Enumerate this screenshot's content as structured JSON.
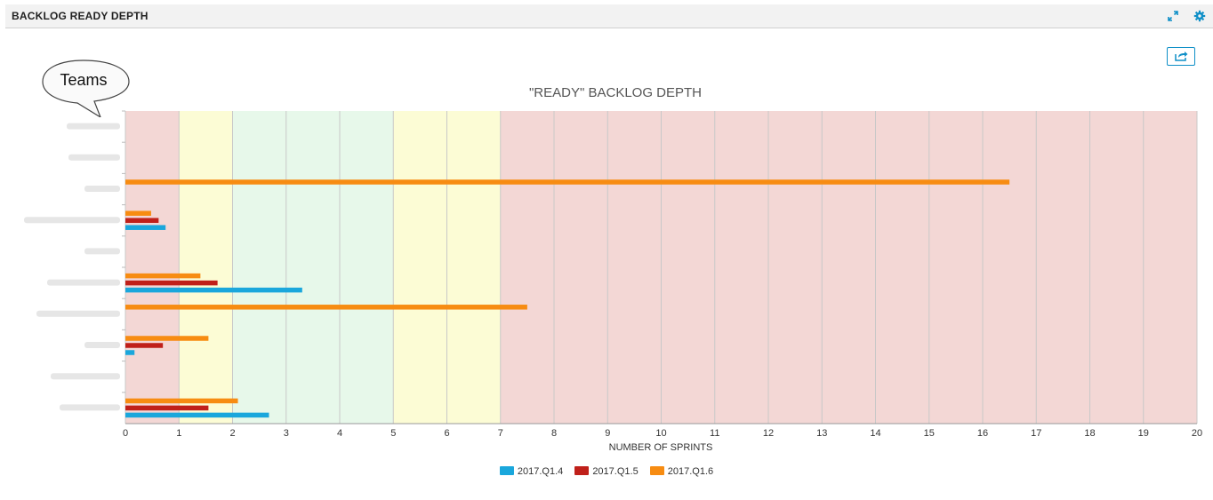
{
  "panel": {
    "title": "BACKLOG READY DEPTH",
    "icons": [
      "expand-icon",
      "gear-icon",
      "export-icon"
    ]
  },
  "callout": {
    "text": "Teams"
  },
  "colors": {
    "header_icon": "#0e8fc7",
    "band_red": "#f3d7d5",
    "band_yellow": "#fcfcd5",
    "band_green": "#e7f8ea",
    "grid": "#c8c8c8"
  },
  "chart_data": {
    "type": "bar",
    "orientation": "horizontal",
    "title": "\"READY\" BACKLOG DEPTH",
    "xlabel": "NUMBER OF SPRINTS",
    "ylabel": "",
    "xlim": [
      0,
      20
    ],
    "x_ticks": [
      "0",
      "1",
      "2",
      "3",
      "4",
      "5",
      "6",
      "7",
      "8",
      "9",
      "10",
      "11",
      "12",
      "13",
      "14",
      "15",
      "16",
      "17",
      "18",
      "19",
      "20"
    ],
    "categories": [
      "Team 1",
      "Team 2",
      "Team 3",
      "Team 4",
      "Team 5",
      "Team 6",
      "Team 7",
      "Team 8",
      "Team 9",
      "Team 10"
    ],
    "category_labels_obscured": true,
    "bands": [
      {
        "from": 0,
        "to": 1,
        "color": "red"
      },
      {
        "from": 1,
        "to": 2,
        "color": "yellow"
      },
      {
        "from": 2,
        "to": 5,
        "color": "green"
      },
      {
        "from": 5,
        "to": 7,
        "color": "yellow"
      },
      {
        "from": 7,
        "to": 20,
        "color": "red"
      }
    ],
    "series": [
      {
        "name": "2017.Q1.4",
        "color": "#1aa7dc",
        "values": [
          null,
          null,
          null,
          0.75,
          null,
          3.3,
          null,
          0.17,
          null,
          2.68
        ]
      },
      {
        "name": "2017.Q1.5",
        "color": "#c0201a",
        "values": [
          null,
          null,
          null,
          0.62,
          null,
          1.72,
          null,
          0.7,
          null,
          1.55
        ]
      },
      {
        "name": "2017.Q1.6",
        "color": "#f78c12",
        "values": [
          null,
          null,
          16.5,
          0.48,
          null,
          1.4,
          7.5,
          1.55,
          null,
          2.1
        ]
      }
    ],
    "legend": "bottom-center",
    "grid": true
  }
}
